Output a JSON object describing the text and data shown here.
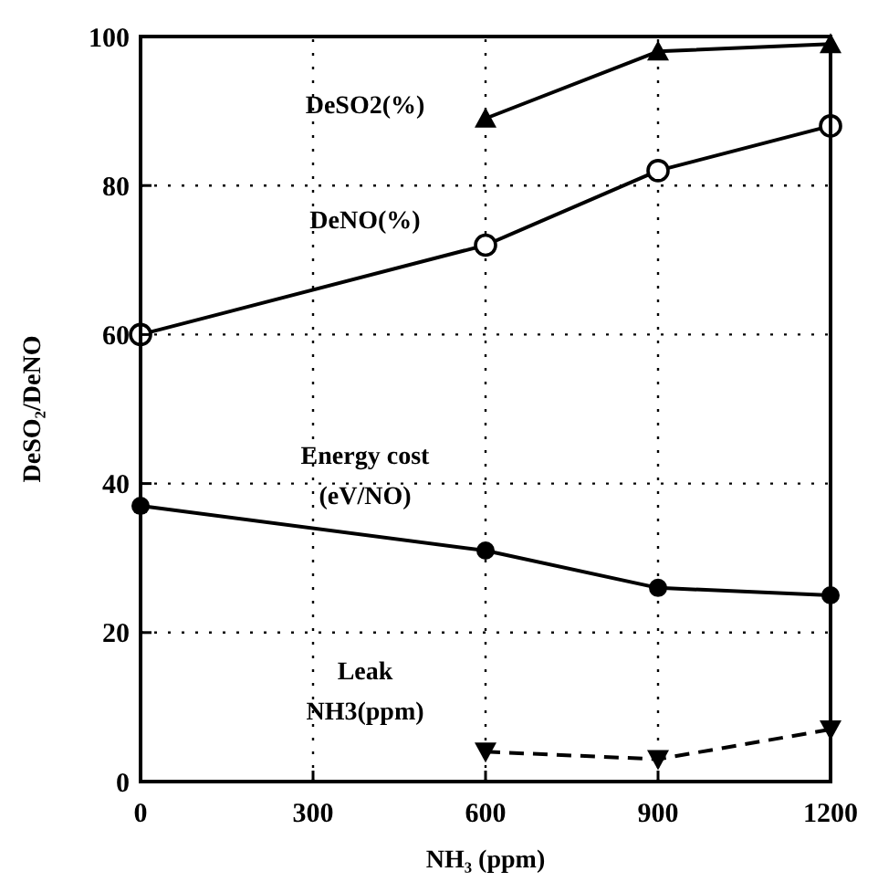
{
  "chart_data": {
    "type": "line",
    "xlabel": "NH₃ (ppm)",
    "ylabel": "DeSO₂/DeNO",
    "xlim": [
      0,
      1200
    ],
    "ylim": [
      0,
      100
    ],
    "xticks": [
      0,
      300,
      600,
      900,
      1200
    ],
    "yticks": [
      0,
      20,
      40,
      60,
      80,
      100
    ],
    "grid": true,
    "series": [
      {
        "name": "DeSO2(%)",
        "color": "#000000",
        "marker": "triangle",
        "line_style": "solid",
        "x": [
          600,
          900,
          1200
        ],
        "values": [
          89,
          98,
          99
        ]
      },
      {
        "name": "DeNO(%)",
        "color": "#000000",
        "marker": "circle-open",
        "line_style": "solid",
        "x": [
          0,
          600,
          900,
          1200
        ],
        "values": [
          60,
          72,
          82,
          88
        ]
      },
      {
        "name": "Energy cost\n(eV/NO)",
        "color": "#000000",
        "marker": "circle",
        "line_style": "solid",
        "x": [
          0,
          600,
          900,
          1200
        ],
        "values": [
          37,
          31,
          26,
          25
        ]
      },
      {
        "name": "Leak\nNH3(ppm)",
        "color": "#000000",
        "marker": "triangle-down",
        "line_style": "dashed",
        "x": [
          600,
          900,
          1200
        ],
        "values": [
          4,
          3,
          7
        ]
      }
    ]
  }
}
